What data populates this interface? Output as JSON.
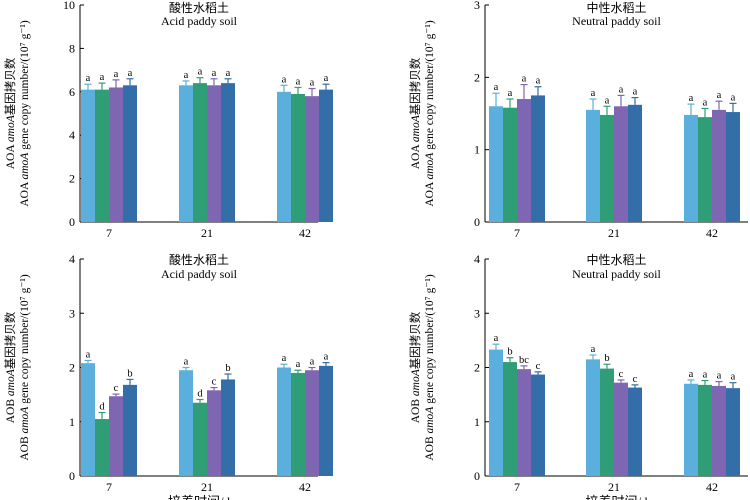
{
  "colors": {
    "s1": "#5aafdc",
    "s2": "#2f9d76",
    "s3": "#7f66b3",
    "s4": "#346ea8"
  },
  "chart_data": [
    {
      "type": "bar",
      "title_cn": "酸性水稻土",
      "title": "Acid paddy soil",
      "ylabel_cn_pre": "AOA ",
      "ylabel_cn_italic": "amoA",
      "ylabel_cn_post": "基因拷贝数",
      "ylabel_en_pre": "AOA ",
      "ylabel_en_italic": "amoA",
      "ylabel_en_post": " gene copy number/(10⁷ g⁻¹)",
      "categories": [
        "7",
        "21",
        "42"
      ],
      "ylim": [
        0,
        10
      ],
      "yticks": [
        "0",
        "2",
        "4",
        "6",
        "8",
        "10"
      ],
      "series": [
        {
          "name": "s1",
          "values": [
            6.1,
            6.3,
            6.0
          ],
          "errors": [
            0.25,
            0.2,
            0.3
          ],
          "labels": [
            "a",
            "a",
            "a"
          ]
        },
        {
          "name": "s2",
          "values": [
            6.1,
            6.4,
            5.9
          ],
          "errors": [
            0.3,
            0.25,
            0.3
          ],
          "labels": [
            "a",
            "a",
            "a"
          ]
        },
        {
          "name": "s3",
          "values": [
            6.2,
            6.3,
            5.8
          ],
          "errors": [
            0.35,
            0.3,
            0.35
          ],
          "labels": [
            "a",
            "a",
            "a"
          ]
        },
        {
          "name": "s4",
          "values": [
            6.3,
            6.4,
            6.1
          ],
          "errors": [
            0.3,
            0.2,
            0.25
          ],
          "labels": [
            "a",
            "a",
            "a"
          ]
        }
      ]
    },
    {
      "type": "bar",
      "title_cn": "中性水稻土",
      "title": "Neutral paddy soil",
      "ylabel_cn_pre": "AOA ",
      "ylabel_cn_italic": "amoA",
      "ylabel_cn_post": "基因拷贝数",
      "ylabel_en_pre": "AOA ",
      "ylabel_en_italic": "amoA",
      "ylabel_en_post": " gene copy number/(10⁷ g⁻¹)",
      "categories": [
        "7",
        "21",
        "42"
      ],
      "ylim": [
        0,
        3
      ],
      "yticks": [
        "0",
        "1",
        "2",
        "3"
      ],
      "series": [
        {
          "name": "s1",
          "values": [
            1.6,
            1.55,
            1.48
          ],
          "errors": [
            0.18,
            0.15,
            0.15
          ],
          "labels": [
            "a",
            "a",
            "a"
          ]
        },
        {
          "name": "s2",
          "values": [
            1.58,
            1.48,
            1.45
          ],
          "errors": [
            0.12,
            0.12,
            0.12
          ],
          "labels": [
            "a",
            "a",
            "a"
          ]
        },
        {
          "name": "s3",
          "values": [
            1.7,
            1.6,
            1.55
          ],
          "errors": [
            0.2,
            0.15,
            0.12
          ],
          "labels": [
            "a",
            "a",
            "a"
          ]
        },
        {
          "name": "s4",
          "values": [
            1.75,
            1.62,
            1.52
          ],
          "errors": [
            0.12,
            0.1,
            0.12
          ],
          "labels": [
            "a",
            "a",
            "a"
          ]
        }
      ]
    },
    {
      "type": "bar",
      "title_cn": "酸性水稻土",
      "title": "Acid paddy soil",
      "ylabel_cn_pre": "AOB ",
      "ylabel_cn_italic": "amoA",
      "ylabel_cn_post": "基因拷贝数",
      "ylabel_en_pre": "AOB ",
      "ylabel_en_italic": "amoA",
      "ylabel_en_post": " gene copy number/(10⁷ g⁻¹)",
      "categories": [
        "7",
        "21",
        "42"
      ],
      "ylim": [
        0,
        4
      ],
      "yticks": [
        "0",
        "1",
        "2",
        "3",
        "4"
      ],
      "xlabel_partial": "培养时间/d",
      "series": [
        {
          "name": "s1",
          "values": [
            2.08,
            1.95,
            2.0
          ],
          "errors": [
            0.05,
            0.05,
            0.06
          ],
          "labels": [
            "a",
            "a",
            "a"
          ]
        },
        {
          "name": "s2",
          "values": [
            1.05,
            1.35,
            1.9
          ],
          "errors": [
            0.12,
            0.06,
            0.05
          ],
          "labels": [
            "d",
            "d",
            "a"
          ]
        },
        {
          "name": "s3",
          "values": [
            1.47,
            1.58,
            1.95
          ],
          "errors": [
            0.04,
            0.05,
            0.05
          ],
          "labels": [
            "c",
            "c",
            "a"
          ]
        },
        {
          "name": "s4",
          "values": [
            1.68,
            1.78,
            2.03
          ],
          "errors": [
            0.1,
            0.1,
            0.06
          ],
          "labels": [
            "b",
            "b",
            "a"
          ]
        }
      ]
    },
    {
      "type": "bar",
      "title_cn": "中性水稻土",
      "title": "Neutral paddy soil",
      "ylabel_cn_pre": "AOB ",
      "ylabel_cn_italic": "amoA",
      "ylabel_cn_post": "基因拷贝数",
      "ylabel_en_pre": "AOB ",
      "ylabel_en_italic": "amoA",
      "ylabel_en_post": " gene copy number/(10⁷ g⁻¹)",
      "categories": [
        "7",
        "21",
        "42"
      ],
      "ylim": [
        0,
        4
      ],
      "yticks": [
        "0",
        "1",
        "2",
        "3",
        "4"
      ],
      "xlabel_partial": "培养时间/d",
      "series": [
        {
          "name": "s1",
          "values": [
            2.33,
            2.15,
            1.7
          ],
          "errors": [
            0.1,
            0.08,
            0.07
          ],
          "labels": [
            "a",
            "a",
            "a"
          ]
        },
        {
          "name": "s2",
          "values": [
            2.1,
            1.98,
            1.68
          ],
          "errors": [
            0.08,
            0.08,
            0.08
          ],
          "labels": [
            "b",
            "b",
            "a"
          ]
        },
        {
          "name": "s3",
          "values": [
            1.97,
            1.72,
            1.66
          ],
          "errors": [
            0.06,
            0.05,
            0.08
          ],
          "labels": [
            "bc",
            "c",
            "a"
          ]
        },
        {
          "name": "s4",
          "values": [
            1.87,
            1.63,
            1.62
          ],
          "errors": [
            0.05,
            0.05,
            0.1
          ],
          "labels": [
            "c",
            "c",
            "a"
          ]
        }
      ]
    }
  ]
}
